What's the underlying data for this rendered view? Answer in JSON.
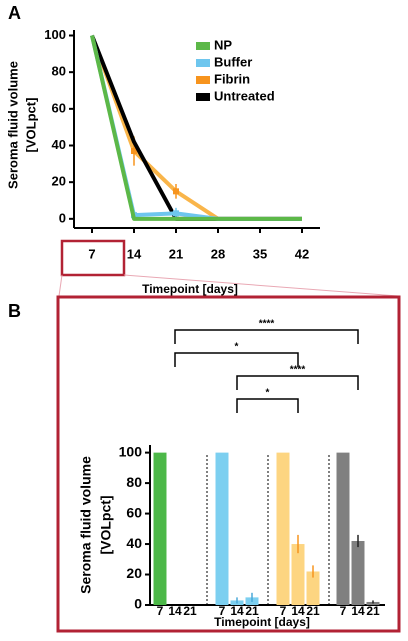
{
  "chart_data": [
    {
      "type": "line",
      "panel_label": "A",
      "ylabel": [
        "Seroma fluid volume",
        "[VOLpct]"
      ],
      "xlabel": "Timepoint [days]",
      "x": [
        7,
        14,
        21,
        28,
        35,
        42
      ],
      "xlim": [
        4,
        45
      ],
      "xticks": [
        7,
        14,
        21,
        28,
        35,
        42
      ],
      "ylim": [
        -5,
        103
      ],
      "yticks": [
        0,
        20,
        40,
        60,
        80,
        100
      ],
      "series": [
        {
          "name": "NP",
          "color": "#5cb848",
          "values": [
            100,
            0,
            0,
            0,
            0,
            0
          ],
          "errors": [
            0,
            0,
            0,
            0,
            0,
            0
          ]
        },
        {
          "name": "Buffer",
          "color": "#6ec6ee",
          "values": [
            100,
            2,
            3,
            0,
            0,
            0
          ],
          "errors": [
            0,
            1,
            3,
            0,
            0,
            0
          ]
        },
        {
          "name": "Fibrin",
          "color": "#f9b54a",
          "values": [
            100,
            37,
            15,
            0,
            0,
            0
          ],
          "errors": [
            0,
            8,
            4,
            0,
            0,
            0
          ]
        },
        {
          "name": "Untreated",
          "color": "#000000",
          "values": [
            100,
            42,
            0,
            0,
            0,
            0
          ],
          "errors": [
            0,
            0,
            0,
            0,
            0,
            0
          ]
        }
      ]
    },
    {
      "type": "bar",
      "panel_label": "B",
      "ylabel": [
        "Seroma fluid volume",
        "[VOLpct]"
      ],
      "xlabel": "Timepoint [days]",
      "categories": [
        "7",
        "14",
        "21"
      ],
      "ylim": [
        0,
        105
      ],
      "yticks": [
        0,
        20,
        40,
        60,
        80,
        100
      ],
      "series": [
        {
          "name": "NP",
          "color": "#4cb848",
          "values": [
            100,
            0,
            0
          ],
          "errors": [
            0,
            0,
            0
          ]
        },
        {
          "name": "Buffer",
          "color": "#7ccff0",
          "values": [
            100,
            3,
            5
          ],
          "errors": [
            0,
            2,
            3
          ]
        },
        {
          "name": "Fibrin",
          "color": "#fdd581",
          "values": [
            100,
            40,
            22
          ],
          "errors": [
            0,
            6,
            4
          ]
        },
        {
          "name": "Untreated",
          "color": "#808080",
          "values": [
            100,
            42,
            2
          ],
          "errors": [
            0,
            4,
            1
          ]
        }
      ],
      "annotations": [
        "****",
        "*",
        "****",
        "*"
      ]
    }
  ]
}
